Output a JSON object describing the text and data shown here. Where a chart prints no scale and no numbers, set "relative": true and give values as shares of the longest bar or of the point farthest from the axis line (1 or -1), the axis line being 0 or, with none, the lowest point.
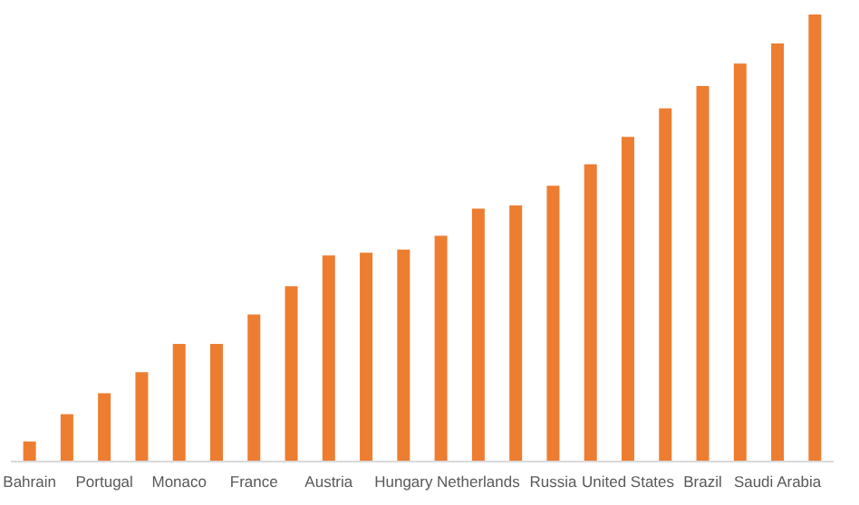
{
  "chart_data": {
    "type": "bar",
    "relative": true,
    "categories": [
      "Bahrain",
      null,
      "Portugal",
      null,
      "Monaco",
      null,
      "France",
      null,
      "Austria",
      null,
      "Hungary",
      null,
      "Netherlands",
      null,
      "Russia",
      null,
      "United States",
      null,
      "Brazil",
      null,
      "Saudi Arabia",
      null
    ],
    "values": [
      0.045,
      0.106,
      0.153,
      0.2,
      0.263,
      0.263,
      0.329,
      0.392,
      0.461,
      0.467,
      0.474,
      0.505,
      0.566,
      0.573,
      0.617,
      0.665,
      0.726,
      0.79,
      0.84,
      0.89,
      0.935,
      1
    ],
    "color": "#ed7d31",
    "grid": false,
    "legend": false
  }
}
